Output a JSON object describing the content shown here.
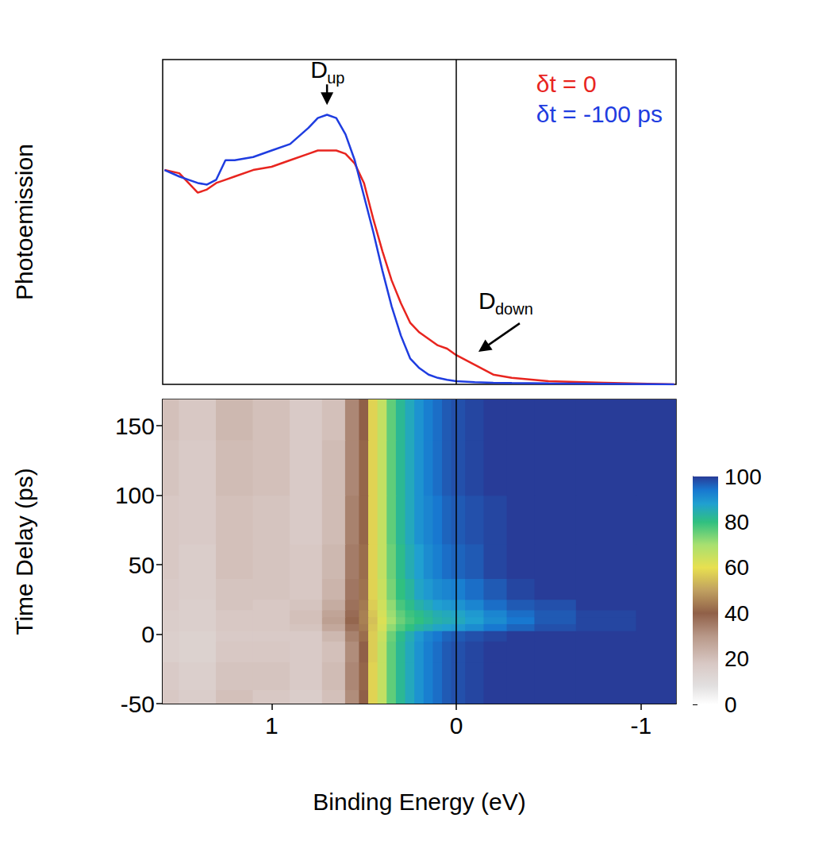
{
  "chart_data": [
    {
      "type": "line",
      "ylabel": "Photoemission",
      "xlim": [
        1.59,
        -1.19
      ],
      "ylim": [
        0,
        100
      ],
      "tick_labels": false,
      "legend": "upper right",
      "reference_line": 0,
      "x": [
        1.58,
        1.5,
        1.45,
        1.4,
        1.35,
        1.3,
        1.25,
        1.2,
        1.1,
        1.0,
        0.9,
        0.8,
        0.75,
        0.7,
        0.65,
        0.6,
        0.55,
        0.5,
        0.45,
        0.4,
        0.35,
        0.3,
        0.25,
        0.2,
        0.15,
        0.1,
        0.05,
        0,
        -0.1,
        -0.2,
        -0.3,
        -0.5,
        -0.8,
        -1.18
      ],
      "series": [
        {
          "name": "δt = 0",
          "color": "#e8251f",
          "values": [
            66,
            65,
            62,
            59,
            60,
            62,
            63,
            64,
            66,
            67,
            69,
            71,
            72,
            72,
            72,
            71,
            68,
            62,
            51,
            41,
            32,
            25,
            19,
            16,
            14,
            12,
            11,
            9,
            6,
            3,
            2,
            1,
            0.5,
            0
          ]
        },
        {
          "name": "δt = -100 ps",
          "color": "#1f3de0",
          "values": [
            66,
            64,
            63,
            62,
            61.5,
            63,
            69,
            69,
            70,
            72,
            74,
            79,
            82,
            83,
            82,
            77,
            69,
            58,
            47,
            35,
            24,
            15,
            8,
            5,
            3,
            2,
            1.4,
            1,
            0.7,
            0.5,
            0.4,
            0.3,
            0.2,
            0
          ]
        }
      ],
      "annotations": [
        {
          "label": "D",
          "subscript": "up",
          "x": 0.7,
          "y": 86
        },
        {
          "label": "D",
          "subscript": "down",
          "x": -0.12,
          "y": 10
        }
      ]
    },
    {
      "type": "heatmap",
      "xlabel": "Binding Energy (eV)",
      "ylabel": "Time Delay (ps)",
      "xlim": [
        1.59,
        -1.19
      ],
      "ylim": [
        -50,
        169
      ],
      "xticks": [
        1,
        0,
        -1
      ],
      "yticks": [
        -50,
        0,
        50,
        100,
        150
      ],
      "tick_labels": true,
      "reference_line": 0,
      "x": [
        1.6,
        1.4,
        1.2,
        1.0,
        0.8,
        0.65,
        0.55,
        0.5,
        0.45,
        0.4,
        0.35,
        0.3,
        0.25,
        0.2,
        0.15,
        0.1,
        0.05,
        0,
        -0.1,
        -0.2,
        -0.35,
        -0.5,
        -0.8,
        -1.15
      ],
      "y": [
        -50,
        -30,
        -10,
        0,
        5,
        10,
        15,
        20,
        30,
        50,
        80,
        120,
        160
      ],
      "z": [
        [
          18,
          16,
          20,
          18,
          16,
          20,
          32,
          40,
          58,
          66,
          76,
          82,
          86,
          90,
          93,
          95,
          97,
          98,
          99,
          100,
          100,
          100,
          100,
          100
        ],
        [
          17,
          15,
          19,
          19,
          17,
          21,
          33,
          41,
          58,
          66,
          76,
          82,
          86,
          90,
          93,
          95,
          97,
          98,
          99,
          100,
          100,
          100,
          100,
          100
        ],
        [
          15,
          14,
          18,
          18,
          17,
          20,
          32,
          40,
          57,
          66,
          76,
          82,
          86,
          90,
          93,
          95,
          97,
          98,
          99,
          100,
          100,
          100,
          100,
          100
        ],
        [
          15,
          14,
          17,
          17,
          17,
          22,
          34,
          42,
          57,
          65,
          75,
          81,
          85,
          89,
          92,
          94,
          96,
          97,
          98,
          99,
          100,
          100,
          100,
          100
        ],
        [
          16,
          15,
          18,
          18,
          19,
          26,
          37,
          44,
          56,
          63,
          72,
          77,
          80,
          83,
          85,
          87,
          88,
          89,
          91,
          94,
          96,
          98,
          99,
          100
        ],
        [
          16,
          15,
          18,
          18,
          20,
          28,
          39,
          45,
          55,
          62,
          70,
          75,
          78,
          80,
          82,
          84,
          85,
          86,
          88,
          91,
          94,
          97,
          99,
          100
        ],
        [
          16,
          15,
          18,
          18,
          20,
          27,
          38,
          45,
          56,
          63,
          71,
          76,
          79,
          81,
          83,
          85,
          86,
          87,
          89,
          92,
          95,
          97,
          99,
          100
        ],
        [
          17,
          15,
          19,
          18,
          19,
          25,
          37,
          44,
          57,
          64,
          72,
          78,
          81,
          84,
          86,
          88,
          89,
          90,
          92,
          95,
          97,
          98,
          100,
          100
        ],
        [
          17,
          16,
          19,
          19,
          18,
          23,
          36,
          43,
          58,
          65,
          74,
          80,
          83,
          87,
          89,
          91,
          92,
          93,
          95,
          97,
          99,
          100,
          100,
          100
        ],
        [
          18,
          16,
          20,
          19,
          18,
          22,
          35,
          42,
          58,
          66,
          75,
          81,
          85,
          88,
          91,
          93,
          95,
          96,
          97,
          99,
          100,
          100,
          100,
          100
        ],
        [
          18,
          17,
          20,
          19,
          17,
          21,
          34,
          41,
          58,
          66,
          76,
          82,
          86,
          90,
          92,
          94,
          96,
          97,
          98,
          99,
          100,
          100,
          100,
          100
        ],
        [
          19,
          17,
          21,
          20,
          17,
          21,
          33,
          41,
          58,
          66,
          76,
          82,
          86,
          90,
          93,
          95,
          97,
          98,
          99,
          100,
          100,
          100,
          100,
          100
        ],
        [
          20,
          18,
          22,
          20,
          17,
          20,
          33,
          40,
          58,
          66,
          76,
          82,
          86,
          90,
          93,
          95,
          97,
          98,
          99,
          100,
          100,
          100,
          100,
          100
        ]
      ],
      "colorbar": {
        "range": [
          0,
          100
        ],
        "ticks": [
          0,
          20,
          40,
          60,
          80,
          100
        ]
      }
    }
  ]
}
